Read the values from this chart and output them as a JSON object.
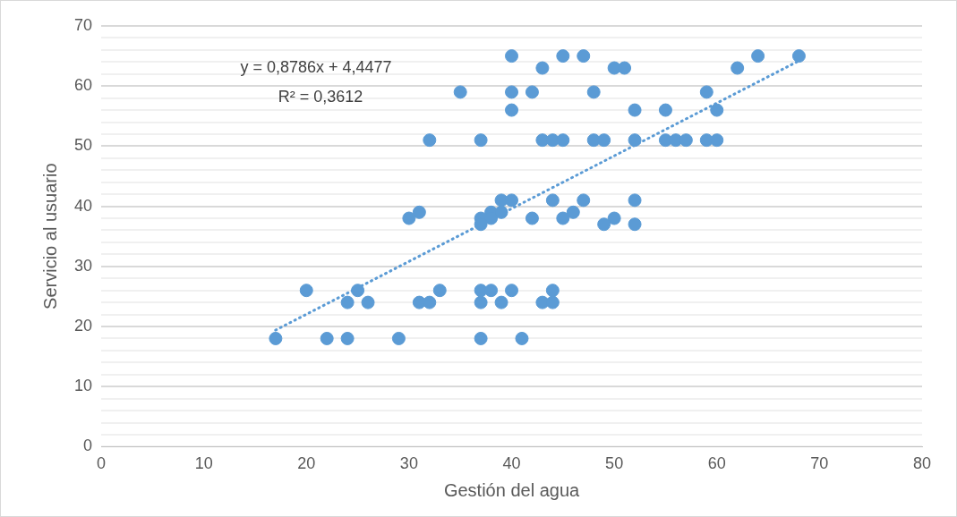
{
  "chart_data": {
    "type": "scatter",
    "xlabel": "Gestión del agua",
    "ylabel": "Servicio al usuario",
    "xlim": [
      0,
      80
    ],
    "xticks": [
      0,
      10,
      20,
      30,
      40,
      50,
      60,
      70,
      80
    ],
    "ylim": [
      0,
      70
    ],
    "yticks": [
      0,
      {
        "value": 2,
        "label": null
      },
      {
        "value": 4,
        "label": null
      },
      {
        "value": 6,
        "label": null
      },
      {
        "value": 8,
        "label": null
      },
      10,
      {
        "value": 12,
        "label": null
      },
      {
        "value": 14,
        "label": null
      },
      {
        "value": 16,
        "label": null
      },
      {
        "value": 18,
        "label": null
      },
      20,
      {
        "value": 22,
        "label": null
      },
      {
        "value": 24,
        "label": null
      },
      {
        "value": 26,
        "label": null
      },
      {
        "value": 28,
        "label": null
      },
      30,
      {
        "value": 32,
        "label": null
      },
      {
        "value": 34,
        "label": null
      },
      {
        "value": 36,
        "label": null
      },
      {
        "value": 38,
        "label": null
      },
      40,
      {
        "value": 42,
        "label": null
      },
      {
        "value": 44,
        "label": null
      },
      {
        "value": 46,
        "label": null
      },
      {
        "value": 48,
        "label": null
      },
      50,
      {
        "value": 52,
        "label": null
      },
      {
        "value": 54,
        "label": null
      },
      {
        "value": 56,
        "label": null
      },
      {
        "value": 58,
        "label": null
      },
      60,
      {
        "value": 62,
        "label": null
      },
      {
        "value": 64,
        "label": null
      },
      {
        "value": 66,
        "label": null
      },
      {
        "value": 68,
        "label": null
      },
      70
    ],
    "grid": "y",
    "legend": false,
    "annotations": [
      "y = 0,8786x + 4,4477",
      "R² = 0,3612"
    ],
    "series": [
      {
        "type": "scatter",
        "color": "#5b9bd5",
        "marker": "circle",
        "x": [
          40,
          45,
          47,
          64,
          68,
          43,
          50,
          51,
          62,
          35,
          40,
          42,
          48,
          59,
          40,
          52,
          55,
          60,
          32,
          37,
          43,
          44,
          45,
          48,
          49,
          52,
          55,
          56,
          57,
          59,
          60,
          39,
          40,
          44,
          47,
          52,
          31,
          38,
          39,
          46,
          30,
          37,
          38,
          42,
          45,
          50,
          37,
          49,
          52,
          20,
          25,
          33,
          37,
          38,
          40,
          44,
          24,
          26,
          31,
          32,
          37,
          39,
          43,
          44,
          17,
          22,
          24,
          29,
          37,
          41
        ],
        "values": [
          65,
          65,
          65,
          65,
          65,
          63,
          63,
          63,
          63,
          59,
          59,
          59,
          59,
          59,
          56,
          56,
          56,
          56,
          51,
          51,
          51,
          51,
          51,
          51,
          51,
          51,
          51,
          51,
          51,
          51,
          51,
          41,
          41,
          41,
          41,
          41,
          39,
          39,
          39,
          39,
          38,
          38,
          38,
          38,
          38,
          38,
          37,
          37,
          37,
          26,
          26,
          26,
          26,
          26,
          26,
          26,
          24,
          24,
          24,
          24,
          24,
          24,
          24,
          24,
          18,
          18,
          18,
          18,
          18,
          18
        ]
      },
      {
        "type": "line",
        "color": "#5b9bd5",
        "marker": "none",
        "line_style": "dotted",
        "x": [
          17,
          68
        ],
        "values": [
          19.4,
          64.2
        ]
      }
    ]
  }
}
